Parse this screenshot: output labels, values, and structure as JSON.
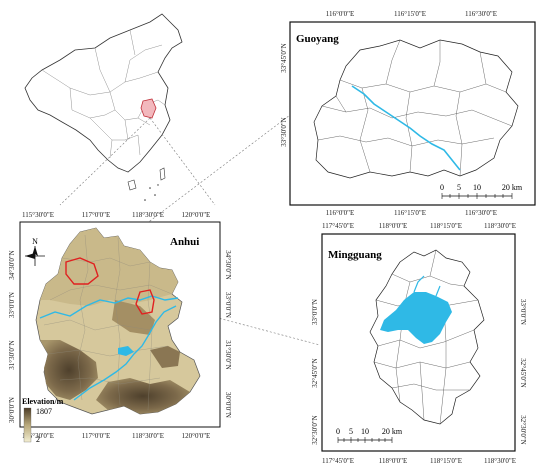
{
  "colors": {
    "river": "#2fb9e6",
    "highlight_boundary": "#e02020",
    "province_fill": "#f2b8bd",
    "elevation_high": "#5a4a33",
    "elevation_mid": "#b8a87a",
    "elevation_low": "#f3eed2"
  },
  "china_map": {
    "icon": "china-outline-map"
  },
  "anhui": {
    "title": "Anhui",
    "north_label": "N",
    "top_ticks": [
      "115°30'0\"E",
      "117°0'0\"E",
      "118°30'0\"E",
      "120°0'0\"E"
    ],
    "bottom_ticks": [
      "115°30'0\"E",
      "117°0'0\"E",
      "118°30'0\"E",
      "120°0'0\"E"
    ],
    "left_ticks": [
      "34°30'0\"N",
      "33°0'0\"N",
      "31°30'0\"N",
      "30°0'0\"N"
    ],
    "right_ticks": [
      "34°30'0\"N",
      "33°0'0\"N",
      "31°30'0\"N",
      "30°0'0\"N"
    ],
    "legend": {
      "title": "Elevation/m",
      "max": "1807",
      "min": "2",
      "high": 1807,
      "low": 2
    }
  },
  "guoyang": {
    "title": "Guoyang",
    "top_ticks": [
      "116°0'0\"E",
      "116°15'0\"E",
      "116°30'0\"E"
    ],
    "bottom_ticks": [
      "116°0'0\"E",
      "116°15'0\"E",
      "116°30'0\"E"
    ],
    "left_ticks": [
      "33°45'0\"N",
      "33°30'0\"N"
    ],
    "scale_labels": [
      "0",
      "5",
      "10",
      "20 km"
    ]
  },
  "mingguang": {
    "title": "Mingguang",
    "top_ticks": [
      "117°45'0\"E",
      "118°0'0\"E",
      "118°15'0\"E",
      "118°30'0\"E"
    ],
    "bottom_ticks": [
      "117°45'0\"E",
      "118°0'0\"E",
      "118°15'0\"E",
      "118°30'0\"E"
    ],
    "left_ticks": [
      "33°0'0\"N",
      "32°45'0\"N",
      "32°30'0\"N"
    ],
    "right_ticks": [
      "33°0'0\"N",
      "32°45'0\"N",
      "32°30'0\"N"
    ],
    "scale_labels": [
      "0",
      "5",
      "10",
      "20 km"
    ]
  }
}
